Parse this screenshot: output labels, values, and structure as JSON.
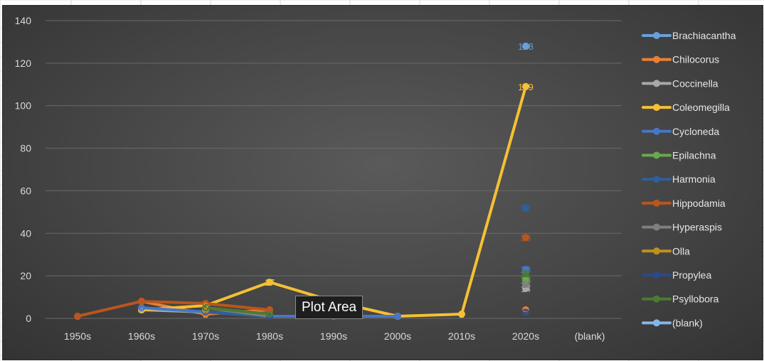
{
  "chart_data": {
    "type": "line",
    "categories": [
      "1950s",
      "1960s",
      "1970s",
      "1980s",
      "1990s",
      "2000s",
      "2010s",
      "2020s",
      "(blank)"
    ],
    "ylim": [
      0,
      140
    ],
    "yticks": [
      0,
      20,
      40,
      60,
      80,
      100,
      120,
      140
    ],
    "grid": "horizontal",
    "legend_position": "right",
    "series": [
      {
        "name": "Brachiacantha",
        "color": "#6a9fd9",
        "values": [
          null,
          null,
          null,
          null,
          null,
          null,
          null,
          128,
          null
        ],
        "labels": [
          null,
          null,
          null,
          null,
          null,
          null,
          null,
          "128",
          null
        ]
      },
      {
        "name": "Chilocorus",
        "color": "#e98035",
        "values": [
          null,
          8,
          2,
          4,
          null,
          null,
          null,
          4,
          null
        ],
        "labels": [
          null,
          "8",
          "2",
          "4",
          null,
          null,
          null,
          "4",
          null
        ]
      },
      {
        "name": "Coccinella",
        "color": "#a8a8a8",
        "values": [
          null,
          4,
          3,
          1,
          null,
          null,
          null,
          14,
          null
        ],
        "labels": [
          null,
          "4",
          "3",
          "1",
          null,
          null,
          null,
          "14",
          null
        ]
      },
      {
        "name": "Coleomegilla",
        "color": "#f5c033",
        "values": [
          null,
          4,
          6,
          17,
          8,
          1,
          2,
          109,
          null
        ],
        "labels": [
          null,
          null,
          "6",
          "17",
          null,
          null,
          "2",
          "109",
          null
        ]
      },
      {
        "name": "Cycloneda",
        "color": "#4677c6",
        "values": [
          null,
          5,
          3,
          1,
          1,
          1,
          null,
          23,
          null
        ],
        "labels": [
          null,
          "5",
          "3",
          "1",
          null,
          "1",
          null,
          "23",
          null
        ]
      },
      {
        "name": "Epilachna",
        "color": "#6aa84f",
        "values": [
          null,
          null,
          5,
          2,
          null,
          null,
          null,
          18,
          null
        ],
        "labels": [
          null,
          null,
          "5",
          "2",
          null,
          null,
          null,
          "18",
          null
        ]
      },
      {
        "name": "Harmonia",
        "color": "#2f5f99",
        "values": [
          null,
          null,
          3,
          1,
          null,
          null,
          null,
          52,
          null
        ],
        "labels": [
          null,
          null,
          "3",
          "1",
          null,
          null,
          null,
          "52",
          null
        ]
      },
      {
        "name": "Hippodamia",
        "color": "#b8561e",
        "values": [
          1,
          8,
          7,
          4,
          null,
          null,
          null,
          38,
          null
        ],
        "labels": [
          "1",
          "8",
          "7",
          "4",
          null,
          null,
          null,
          "38",
          null
        ]
      },
      {
        "name": "Hyperaspis",
        "color": "#7f7f7f",
        "values": [
          null,
          null,
          5,
          1,
          null,
          null,
          null,
          16,
          null
        ],
        "labels": [
          null,
          null,
          "5",
          "1",
          null,
          null,
          null,
          "16",
          null
        ]
      },
      {
        "name": "Olla",
        "color": "#bf9020",
        "values": [
          null,
          null,
          4,
          null,
          null,
          null,
          null,
          3,
          null
        ],
        "labels": [
          null,
          null,
          "4",
          null,
          null,
          null,
          null,
          "3",
          null
        ]
      },
      {
        "name": "Propylea",
        "color": "#2c4a8a",
        "values": [
          null,
          null,
          null,
          1,
          null,
          null,
          null,
          3,
          null
        ],
        "labels": [
          null,
          null,
          null,
          "1",
          null,
          null,
          null,
          "3",
          null
        ]
      },
      {
        "name": "Psyllobora",
        "color": "#4c7a34",
        "values": [
          null,
          null,
          5,
          2,
          null,
          null,
          null,
          21,
          null
        ],
        "labels": [
          null,
          null,
          "5",
          "2",
          null,
          null,
          null,
          "21",
          null
        ]
      },
      {
        "name": "(blank)",
        "color": "#86b6e8",
        "values": [
          null,
          null,
          null,
          null,
          null,
          null,
          null,
          null,
          null
        ],
        "labels": [
          null,
          null,
          null,
          null,
          null,
          null,
          null,
          null,
          null
        ]
      }
    ]
  },
  "tooltip": {
    "text": "Plot Area"
  }
}
